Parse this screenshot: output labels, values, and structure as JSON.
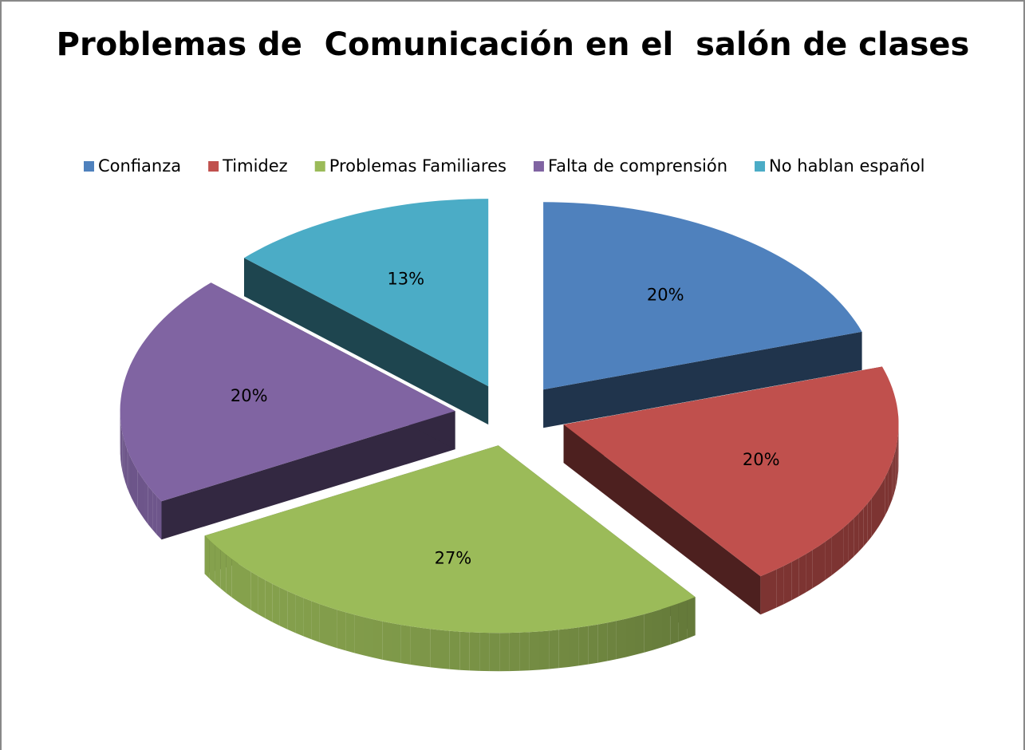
{
  "chart_data": {
    "type": "pie3d",
    "title": "Problemas de  Comunicación en el  salón de clases",
    "categories": [
      "Confianza",
      "Timidez",
      "Problemas Familiares",
      "Falta de comprensión",
      "No hablan español"
    ],
    "values": [
      20,
      20,
      27,
      20,
      13
    ],
    "value_labels": [
      "20%",
      "20%",
      "27%",
      "20%",
      "13%"
    ],
    "colors": [
      "#4f81bd",
      "#c0504d",
      "#9bbb59",
      "#8064a2",
      "#4bacc6"
    ],
    "legend": "top"
  }
}
